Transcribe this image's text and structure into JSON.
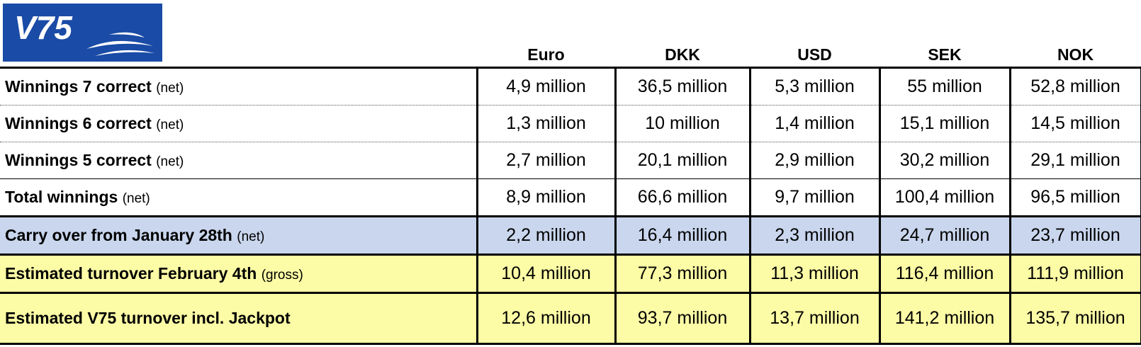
{
  "logo": {
    "text": "V75",
    "bg_color": "#1a4ba6"
  },
  "table": {
    "columns": [
      "Euro",
      "DKK",
      "USD",
      "SEK",
      "NOK"
    ],
    "rows": [
      {
        "label": "Winnings 7 correct",
        "note": "(net)",
        "values": [
          "4,9 million",
          "36,5 million",
          "5,3 million",
          "55 million",
          "52,8 million"
        ]
      },
      {
        "label": "Winnings 6 correct",
        "note": "(net)",
        "values": [
          "1,3 million",
          "10 million",
          "1,4 million",
          "15,1 million",
          "14,5 million"
        ]
      },
      {
        "label": "Winnings 5 correct",
        "note": "(net)",
        "values": [
          "2,7 million",
          "20,1 million",
          "2,9 million",
          "30,2 million",
          "29,1 million"
        ]
      },
      {
        "label": "Total winnings",
        "note": "(net)",
        "values": [
          "8,9 million",
          "66,6 million",
          "9,7 million",
          "100,4 million",
          "96,5 million"
        ]
      },
      {
        "label": "Carry over from January 28th",
        "note": "(net)",
        "values": [
          "2,2 million",
          "16,4 million",
          "2,3 million",
          "24,7 million",
          "23,7 million"
        ]
      },
      {
        "label": "Estimated turnover February 4th",
        "note": "(gross)",
        "values": [
          "10,4 million",
          "77,3 million",
          "11,3 million",
          "116,4 million",
          "111,9 million"
        ]
      },
      {
        "label": "Estimated V75 turnover incl. Jackpot",
        "note": "",
        "values": [
          "12,6 million",
          "93,7 million",
          "13,7 million",
          "141,2 million",
          "135,7 million"
        ]
      }
    ]
  },
  "colors": {
    "carry_over_row": "#c9d6ed",
    "turnover_rows": "#fdfca6"
  }
}
